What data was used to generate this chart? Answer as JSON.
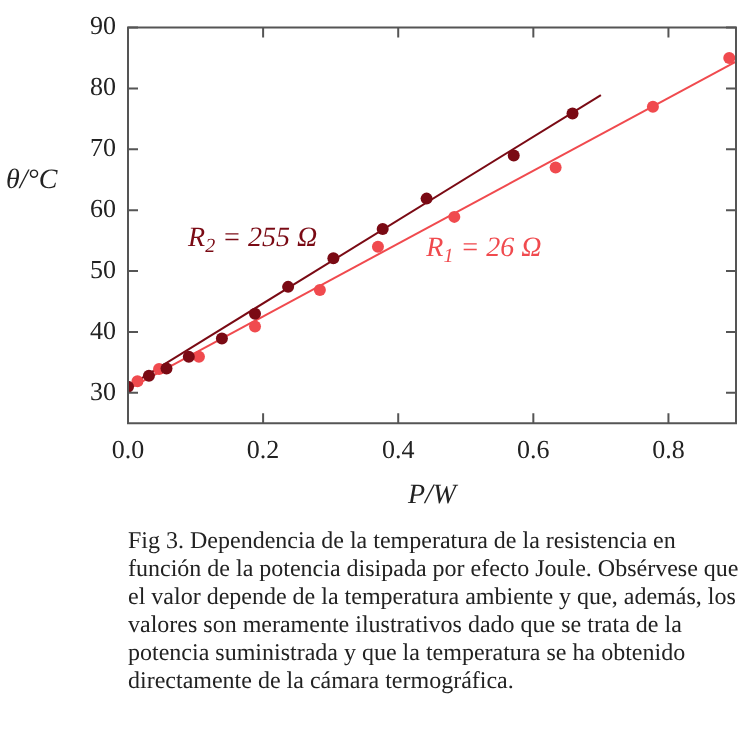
{
  "chart_data": {
    "type": "scatter",
    "xlabel": "P/W",
    "ylabel": "θ/°C",
    "xlim": [
      0,
      0.9
    ],
    "ylim": [
      25,
      90
    ],
    "xticks": [
      {
        "value": 0,
        "label": "0.0"
      },
      {
        "value": 0.2,
        "label": "0.2"
      },
      {
        "value": 0.4,
        "label": "0.4"
      },
      {
        "value": 0.6,
        "label": "0.6"
      },
      {
        "value": 0.8,
        "label": "0.8"
      }
    ],
    "yticks": [
      30,
      40,
      50,
      60,
      70,
      80,
      90
    ],
    "grid": false,
    "legend": false,
    "marker": "circle",
    "series": [
      {
        "name": "R$_{2}$ = 255 Ω",
        "color": "#7a0a14",
        "x": [
          0,
          0.031,
          0.057,
          0.09,
          0.139,
          0.188,
          0.237,
          0.304,
          0.377,
          0.442,
          0.571,
          0.658
        ],
        "values": [
          31,
          32.8,
          34,
          35.9,
          38.9,
          43,
          47.4,
          52.1,
          56.9,
          61.9,
          69,
          75.9
        ]
      },
      {
        "name": "R$_{1}$ = 26 Ω",
        "color": "#f04a4e",
        "x": [
          0.014,
          0.046,
          0.105,
          0.188,
          0.284,
          0.37,
          0.483,
          0.633,
          0.777,
          0.89
        ],
        "values": [
          31.9,
          33.9,
          35.9,
          40.9,
          46.9,
          54,
          58.9,
          67,
          77,
          85
        ]
      },
      {
        "type": "line",
        "color": "#7a0a14",
        "x": [
          0,
          0.7
        ],
        "values": [
          31,
          78.9
        ],
        "marker": "none",
        "line_style": "solid"
      },
      {
        "type": "line",
        "color": "#f04a4e",
        "x": [
          0,
          0.9
        ],
        "values": [
          30.6,
          84.4
        ],
        "marker": "none",
        "line_style": "solid"
      }
    ],
    "annotations": [
      "Fig 3. Dependencia de la temperatura de la resistencia en función de la potencia disipada por efecto Joule. Obsérvese que el valor depende de la temperatura ambiente y que, además, los valores son meramente ilustrativos dado que se trata de la potencia suministrada y que la temperatura se ha obtenido directamente de la cámara termográfica."
    ]
  }
}
